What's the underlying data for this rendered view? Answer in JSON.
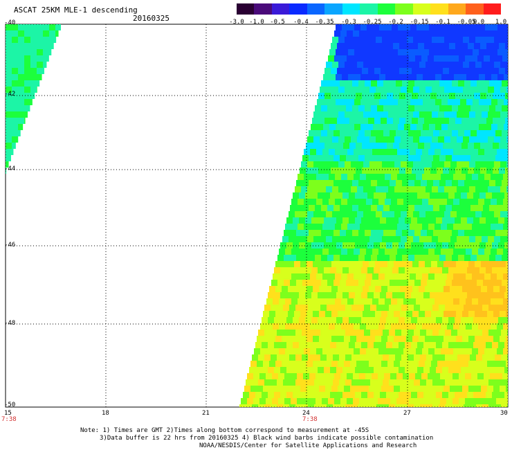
{
  "header": {
    "title": "ASCAT 25KM MLE-1 descending",
    "date": "20160325"
  },
  "colorbar": {
    "ticks": [
      "-3.0",
      "-1.0",
      "-0.5",
      "-0.4",
      "-0.35",
      "-0.3",
      "-0.25",
      "-0.2",
      "-0.15",
      "-0.1",
      "-0.05",
      "0.0",
      "1.0"
    ],
    "colors": [
      "#2a0033",
      "#4a0a7a",
      "#3a1ad8",
      "#0a2aff",
      "#0a66ff",
      "#0aa6ff",
      "#00e6ff",
      "#1cf5a6",
      "#1cff3c",
      "#7dff1c",
      "#d8ff1c",
      "#ffe01c",
      "#ffa81c",
      "#ff601c",
      "#ff1c1c"
    ]
  },
  "map": {
    "lat_labels": [
      "-40",
      "-42",
      "-44",
      "-46",
      "-48",
      "-50"
    ],
    "lon_labels": [
      "15",
      "18",
      "21",
      "24",
      "27",
      "30"
    ],
    "time_labels": [
      "7:38",
      "7:38"
    ]
  },
  "footer": {
    "line1": "Note: 1) Times are GMT 2)Times along bottom correspond to measurement at -45S",
    "line2": "3)Data buffer is 22 hrs from 20160325 4) Black wind barbs indicate possible contamination",
    "line3": "NOAA/NESDIS/Center for Satellite Applications and Research"
  }
}
